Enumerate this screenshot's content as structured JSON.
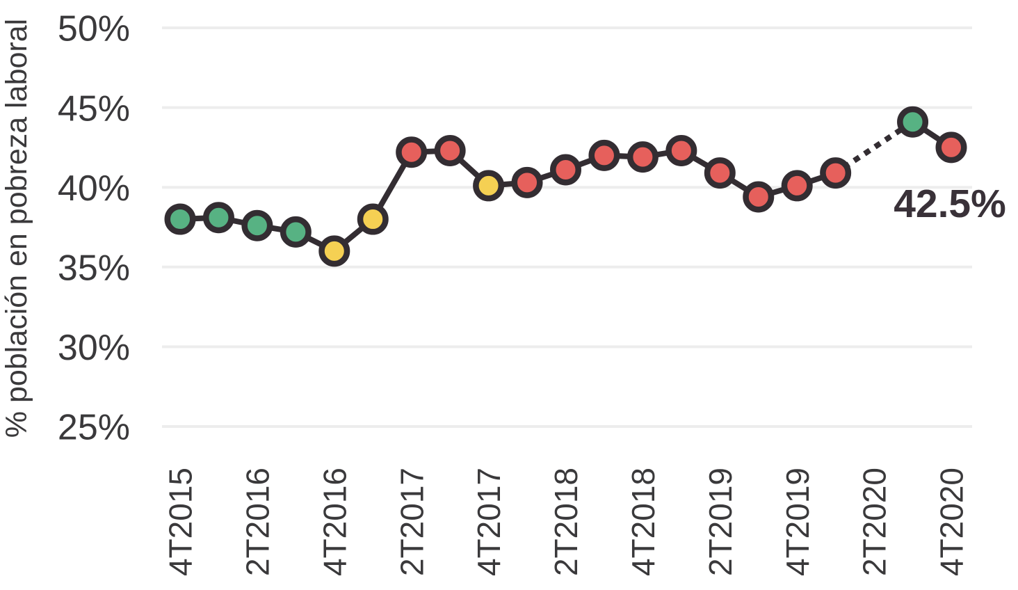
{
  "chart_data": {
    "type": "line",
    "title": "",
    "xlabel": "",
    "ylabel": "% población en pobreza laboral",
    "ylim": [
      25,
      50
    ],
    "grid": true,
    "legend": false,
    "y_ticks": [
      {
        "value": 50,
        "label": "50%"
      },
      {
        "value": 45,
        "label": "45%"
      },
      {
        "value": 40,
        "label": "40%"
      },
      {
        "value": 35,
        "label": "35%"
      },
      {
        "value": 30,
        "label": "30%"
      },
      {
        "value": 25,
        "label": "25%"
      }
    ],
    "x_ticks": [
      "4T2015",
      "2T2016",
      "4T2016",
      "2T2017",
      "4T2017",
      "2T2018",
      "4T2018",
      "2T2019",
      "4T2019",
      "2T2020",
      "4T2020"
    ],
    "series": [
      {
        "name": "% población en pobreza laboral",
        "points": [
          {
            "quarter": "4T2015",
            "value": 38.0,
            "status": "green"
          },
          {
            "quarter": "1T2016",
            "value": 38.1,
            "status": "green"
          },
          {
            "quarter": "2T2016",
            "value": 37.6,
            "status": "green"
          },
          {
            "quarter": "3T2016",
            "value": 37.2,
            "status": "green"
          },
          {
            "quarter": "4T2016",
            "value": 36.0,
            "status": "yellow"
          },
          {
            "quarter": "1T2017",
            "value": 38.0,
            "status": "yellow"
          },
          {
            "quarter": "2T2017",
            "value": 42.2,
            "status": "red"
          },
          {
            "quarter": "3T2017",
            "value": 42.3,
            "status": "red"
          },
          {
            "quarter": "4T2017",
            "value": 40.1,
            "status": "yellow"
          },
          {
            "quarter": "1T2018",
            "value": 40.3,
            "status": "red"
          },
          {
            "quarter": "2T2018",
            "value": 41.1,
            "status": "red"
          },
          {
            "quarter": "3T2018",
            "value": 42.0,
            "status": "red"
          },
          {
            "quarter": "4T2018",
            "value": 41.9,
            "status": "red"
          },
          {
            "quarter": "1T2019",
            "value": 42.3,
            "status": "red"
          },
          {
            "quarter": "2T2019",
            "value": 40.9,
            "status": "red"
          },
          {
            "quarter": "3T2019",
            "value": 39.4,
            "status": "red"
          },
          {
            "quarter": "4T2019",
            "value": 40.1,
            "status": "red"
          },
          {
            "quarter": "1T2020",
            "value": 40.9,
            "status": "red"
          },
          {
            "quarter": "3T2020",
            "value": 44.1,
            "status": "green"
          },
          {
            "quarter": "4T2020",
            "value": 42.5,
            "status": "red"
          }
        ]
      }
    ],
    "dotted_between": [
      "1T2020",
      "3T2020"
    ],
    "annotation": {
      "text": "42.5%",
      "attached_to": "4T2020"
    },
    "status_colors": {
      "green": "#57b283",
      "yellow": "#f5d053",
      "red": "#e6605c"
    },
    "line_color": "#332d32",
    "grid_color": "#ededed",
    "axis_text_color": "#3a393b",
    "annotation_color": "#393138"
  }
}
